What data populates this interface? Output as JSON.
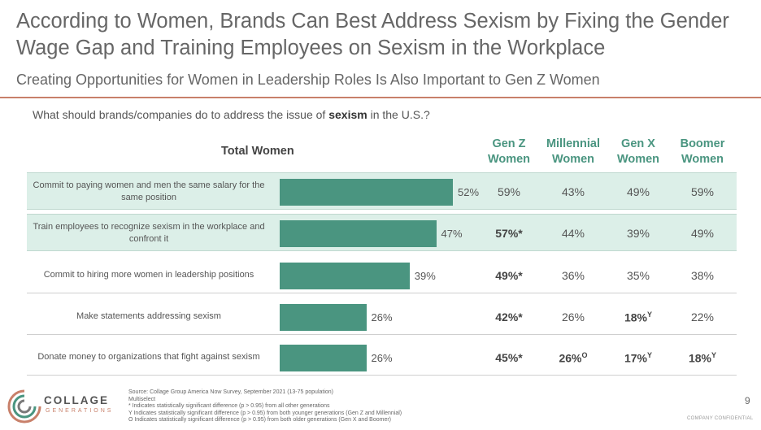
{
  "title": "According to Women, Brands Can Best Address Sexism by Fixing the Gender Wage Gap and Training Employees on Sexism in the Workplace",
  "subtitle": "Creating Opportunities for Women in Leadership Roles Is Also Important to Gen Z Women",
  "question_prefix": "What should brands/companies do to address the issue of ",
  "question_bold": "sexism",
  "question_suffix": " in the U.S.?",
  "total_header": "Total Women",
  "columns": [
    {
      "line1": "Gen Z",
      "line2": "Women"
    },
    {
      "line1": "Millennial",
      "line2": "Women"
    },
    {
      "line1": "Gen X",
      "line2": "Women"
    },
    {
      "line1": "Boomer",
      "line2": "Women"
    }
  ],
  "rows": [
    {
      "label": "Commit to paying women and men the same salary for the same position",
      "total": "52%",
      "cells": [
        {
          "v": "59%",
          "b": false,
          "s": ""
        },
        {
          "v": "43%",
          "b": false,
          "s": ""
        },
        {
          "v": "49%",
          "b": false,
          "s": ""
        },
        {
          "v": "59%",
          "b": false,
          "s": ""
        }
      ]
    },
    {
      "label": "Train employees to recognize sexism in the workplace and confront it",
      "total": "47%",
      "cells": [
        {
          "v": "57%*",
          "b": true,
          "s": ""
        },
        {
          "v": "44%",
          "b": false,
          "s": ""
        },
        {
          "v": "39%",
          "b": false,
          "s": ""
        },
        {
          "v": "49%",
          "b": false,
          "s": ""
        }
      ]
    },
    {
      "label": "Commit to hiring more women in leadership positions",
      "total": "39%",
      "cells": [
        {
          "v": "49%*",
          "b": true,
          "s": ""
        },
        {
          "v": "36%",
          "b": false,
          "s": ""
        },
        {
          "v": "35%",
          "b": false,
          "s": ""
        },
        {
          "v": "38%",
          "b": false,
          "s": ""
        }
      ]
    },
    {
      "label": "Make statements addressing sexism",
      "total": "26%",
      "cells": [
        {
          "v": "42%*",
          "b": true,
          "s": ""
        },
        {
          "v": "26%",
          "b": false,
          "s": ""
        },
        {
          "v": "18%",
          "b": true,
          "s": "Y"
        },
        {
          "v": "22%",
          "b": false,
          "s": ""
        }
      ]
    },
    {
      "label": "Donate money to organizations that fight against sexism",
      "total": "26%",
      "cells": [
        {
          "v": "45%*",
          "b": true,
          "s": ""
        },
        {
          "v": "26%",
          "b": true,
          "s": "O"
        },
        {
          "v": "17%",
          "b": true,
          "s": "Y"
        },
        {
          "v": "18%",
          "b": true,
          "s": "Y"
        }
      ]
    }
  ],
  "chart_data": {
    "type": "bar",
    "orientation": "horizontal",
    "categories": [
      "Commit to paying women and men the same salary for the same position",
      "Train employees to recognize sexism in the workplace and confront it",
      "Commit to hiring more women in leadership positions",
      "Make statements addressing sexism",
      "Donate money to organizations that fight against sexism"
    ],
    "series": [
      {
        "name": "Total Women",
        "values": [
          52,
          47,
          39,
          26,
          26
        ]
      }
    ],
    "xlim": [
      0,
      100
    ],
    "color": "#4a9580"
  },
  "footer": [
    "Source: Collage Group America Now Survey, September 2021 (13-75 population)",
    "Multiselect",
    "* Indicates statistically significant difference (p > 0.95) from all other generations",
    "Y Indicates statistically significant difference (p > 0.95) from both younger generations (Gen Z and Millennial)",
    "O Indicates statistically significant difference (p > 0.95) from both older generations (Gen X and Boomer)"
  ],
  "logo_text": "COLLAGE",
  "logo_sub": "GENERATIONS",
  "page_number": "9",
  "confidential": "COMPANY CONFIDENTIAL",
  "colors": {
    "accent": "#4a9580",
    "row_shade": "#dcefe8",
    "divider": "#c8806a"
  }
}
